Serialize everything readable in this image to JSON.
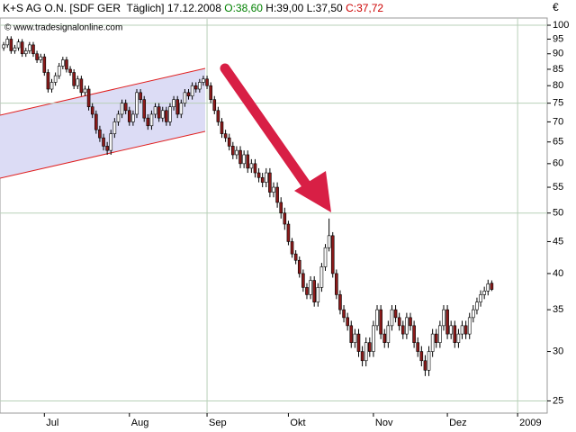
{
  "chart_data": {
    "type": "candlestick",
    "title": "K+S AG O.N. [SDF GER  Täglich] 17.12.2008",
    "ohlc_labels": [
      {
        "text": "O:38,60",
        "color": "#008000"
      },
      {
        "text": "H:39,00",
        "color": "#000000"
      },
      {
        "text": "L:37,50",
        "color": "#000000"
      },
      {
        "text": "C:37,72",
        "color": "#cc0000"
      }
    ],
    "watermark": "© www.tradesignalonline.com",
    "y_label": "€",
    "log_y": true,
    "ylim": [
      23.9,
      102.7
    ],
    "yticks": [
      25,
      30,
      35,
      40,
      45,
      50,
      55,
      60,
      65,
      70,
      75,
      80,
      85,
      90,
      95,
      100
    ],
    "ygrid": [
      25,
      50,
      75,
      100
    ],
    "xlim": [
      -1,
      147
    ],
    "xticks": [
      {
        "value": 11,
        "label": "Jul"
      },
      {
        "value": 34,
        "label": "Aug"
      },
      {
        "value": 55,
        "label": "Sep"
      },
      {
        "value": 77,
        "label": "Okt"
      },
      {
        "value": 100,
        "label": "Nov"
      },
      {
        "value": 120,
        "label": "Dez"
      },
      {
        "value": 139,
        "label": "2009"
      }
    ],
    "xgrid": [
      55,
      139
    ],
    "up_color": "#ffffff",
    "down_color": "#8b1a1a",
    "series": {
      "open": [
        92,
        93,
        95,
        91,
        92,
        94,
        90,
        91,
        93,
        90,
        88,
        89,
        84,
        79,
        81,
        83,
        86,
        88,
        85,
        84,
        80,
        82,
        78,
        79,
        74,
        72,
        68,
        66,
        64,
        63,
        67,
        70,
        72,
        75,
        73,
        70,
        72,
        78,
        76,
        71,
        69,
        72,
        74,
        71,
        73,
        70,
        74,
        76,
        72,
        75,
        78,
        77,
        80,
        79,
        81,
        82,
        80,
        76,
        73,
        70,
        67,
        66,
        64,
        62,
        63,
        60,
        62,
        59,
        60,
        58,
        57,
        56,
        58,
        54,
        55,
        52,
        50,
        48,
        45,
        43,
        42,
        40,
        38,
        37,
        39,
        36,
        38,
        41,
        44,
        46,
        40,
        37,
        35,
        34,
        33,
        31,
        32,
        30,
        29,
        31,
        30,
        33,
        35,
        32,
        31,
        33,
        35,
        34,
        33,
        32,
        34,
        33,
        31,
        30,
        29,
        28,
        30,
        32,
        31,
        33,
        35,
        32,
        33,
        31,
        32,
        33,
        32,
        34,
        35,
        36,
        37,
        37.5,
        38.6
      ],
      "high": [
        94,
        96,
        96,
        93,
        95,
        95,
        92,
        94,
        94,
        91,
        90,
        90,
        85,
        82,
        84,
        87,
        89,
        89,
        86,
        85,
        83,
        83,
        80,
        80,
        75,
        73,
        69,
        67,
        65,
        68,
        71,
        73,
        76,
        76,
        74,
        73,
        79,
        79,
        77,
        72,
        73,
        75,
        75,
        74,
        74,
        75,
        77,
        77,
        76,
        79,
        79,
        81,
        81,
        82,
        83,
        83,
        81,
        77,
        74,
        71,
        68,
        67,
        65,
        64,
        64,
        63,
        63,
        61,
        61,
        59,
        58,
        59,
        59,
        56,
        56,
        53,
        51,
        48.6,
        45.6,
        43.6,
        42.6,
        40.6,
        38.6,
        39.6,
        39.6,
        38.6,
        41.6,
        44.6,
        49,
        46.6,
        40.6,
        37.6,
        35.6,
        34.6,
        33.6,
        32.6,
        32.6,
        30.6,
        31.6,
        31.6,
        33.6,
        35.6,
        35.6,
        32.6,
        33.6,
        35.6,
        35.6,
        34.6,
        33.6,
        34.6,
        34.6,
        33.6,
        31.6,
        30.6,
        29.6,
        30.6,
        32.6,
        32.6,
        33.6,
        35.6,
        35.6,
        33.6,
        33.6,
        32.6,
        33.6,
        33.6,
        34.6,
        35.6,
        36.6,
        37.6,
        38.1,
        39.1,
        39
      ],
      "low": [
        91,
        92,
        90,
        90,
        91,
        89,
        89,
        90,
        89,
        87,
        87,
        83,
        78,
        78,
        80,
        82,
        85,
        84,
        83,
        79,
        79,
        77,
        77,
        73,
        71,
        67,
        65,
        63,
        62,
        62,
        66,
        69,
        71,
        72,
        69,
        69,
        71,
        75,
        70,
        68,
        68,
        71,
        70,
        70,
        69,
        69,
        73,
        71,
        71,
        74,
        76,
        76,
        78,
        78,
        80,
        79,
        75,
        72,
        69,
        66,
        65,
        63,
        61,
        61,
        59,
        59,
        58,
        58,
        57,
        56,
        55,
        55,
        53,
        53,
        51,
        49,
        47,
        44.4,
        42.4,
        41.4,
        39.4,
        37.4,
        36.4,
        36.4,
        35.4,
        35.4,
        37.4,
        40.4,
        43.4,
        39.4,
        36.4,
        34.4,
        33.4,
        32.4,
        30.4,
        30.4,
        29.4,
        28.4,
        28.4,
        29.4,
        29.4,
        32.4,
        31.4,
        30.4,
        30.4,
        32.4,
        33.4,
        32.4,
        31.4,
        31.4,
        32.4,
        30.4,
        29.4,
        28.4,
        27.4,
        27.4,
        29.4,
        30.4,
        30.4,
        32.4,
        31.4,
        31.4,
        30.4,
        30.4,
        31.4,
        31.4,
        31.4,
        33.4,
        34.4,
        35.4,
        36.4,
        36.9,
        37.5
      ],
      "close": [
        93,
        95,
        91,
        92,
        94,
        90,
        91,
        93,
        90,
        88,
        89,
        84,
        79,
        81,
        83,
        86,
        88,
        85,
        84,
        80,
        82,
        78,
        79,
        74,
        72,
        68,
        66,
        64,
        63,
        67,
        70,
        72,
        75,
        73,
        70,
        72,
        78,
        76,
        71,
        69,
        72,
        74,
        71,
        73,
        70,
        74,
        76,
        72,
        75,
        78,
        77,
        80,
        79,
        81,
        82,
        80,
        76,
        73,
        70,
        67,
        66,
        64,
        62,
        63,
        60,
        62,
        59,
        60,
        58,
        57,
        56,
        58,
        54,
        55,
        52,
        50,
        48,
        45,
        43,
        42,
        40,
        38,
        37,
        39,
        36,
        38,
        41,
        44,
        46,
        40,
        37,
        35,
        34,
        33,
        31,
        32,
        30,
        29,
        31,
        30,
        33,
        35,
        32,
        31,
        33,
        35,
        34,
        33,
        32,
        34,
        33,
        31,
        30,
        29,
        28,
        30,
        32,
        31,
        33,
        35,
        32,
        33,
        31,
        32,
        33,
        32,
        34,
        35,
        36,
        37,
        37.5,
        38.5,
        37.72
      ]
    }
  }
}
